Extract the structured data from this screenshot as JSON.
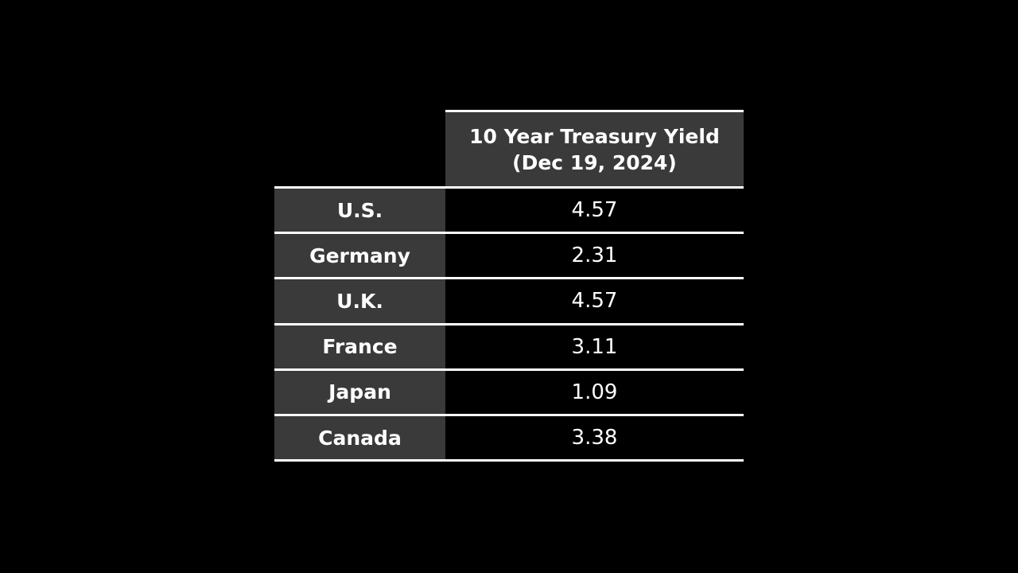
{
  "header": {
    "line1": "10 Year Treasury Yield",
    "line2": "(Dec 19, 2024)"
  },
  "table": {
    "rows": [
      {
        "label": "U.S.",
        "value": "4.57"
      },
      {
        "label": "Germany",
        "value": "2.31"
      },
      {
        "label": "U.K.",
        "value": "4.57"
      },
      {
        "label": "France",
        "value": "3.11"
      },
      {
        "label": "Japan",
        "value": "1.09"
      },
      {
        "label": "Canada",
        "value": "3.38"
      }
    ]
  },
  "chart_data": {
    "type": "table",
    "title": "10 Year Treasury Yield (Dec 19, 2024)",
    "value_column_header": "10 Year Treasury Yield (Dec 19, 2024)",
    "categories": [
      "U.S.",
      "Germany",
      "U.K.",
      "France",
      "Japan",
      "Canada"
    ],
    "values": [
      4.57,
      2.31,
      4.57,
      3.11,
      1.09,
      3.38
    ]
  },
  "colors": {
    "background": "#000000",
    "header_cell": "#3a3a3a",
    "label_cell": "#3a3a3a",
    "value_cell": "#000000",
    "border": "#ffffff",
    "text": "#ffffff"
  }
}
